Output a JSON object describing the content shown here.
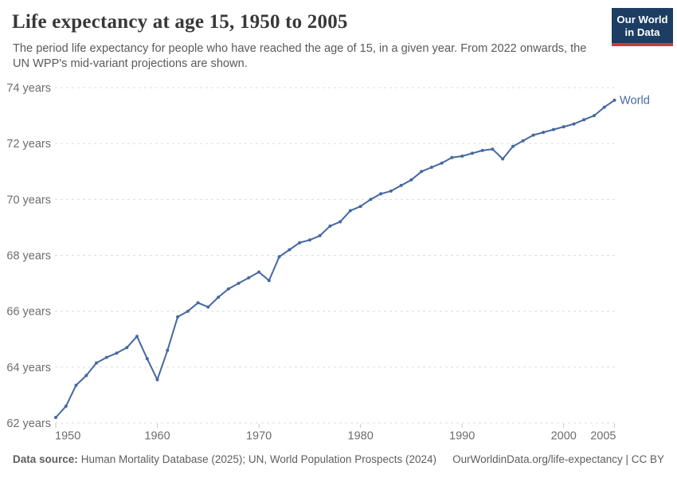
{
  "header": {
    "title": "Life expectancy at age 15, 1950 to 2005",
    "subtitle_lines": [
      "The period life expectancy for people who have reached the age of 15, in a given year. From 2022 onwards, the",
      "UN WPP's mid-variant projections are shown."
    ]
  },
  "logo": {
    "line1": "Our World",
    "line2": "in Data",
    "bg_color": "#1d3d63",
    "accent_color": "#cc3c33"
  },
  "chart_data": {
    "type": "line",
    "title": "Life expectancy at age 15, 1950 to 2005",
    "xlim": [
      1950,
      2005
    ],
    "ylim": [
      62,
      74
    ],
    "yticks": [
      62,
      64,
      66,
      68,
      70,
      72,
      74
    ],
    "ytick_suffix": " years",
    "xticks": [
      1950,
      1960,
      1970,
      1980,
      1990,
      2000,
      2005
    ],
    "grid": "horizontal-dashed",
    "legend_position": "end-of-line",
    "x": [
      1950,
      1951,
      1952,
      1953,
      1954,
      1955,
      1956,
      1957,
      1958,
      1959,
      1960,
      1961,
      1962,
      1963,
      1964,
      1965,
      1966,
      1967,
      1968,
      1969,
      1970,
      1971,
      1972,
      1973,
      1974,
      1975,
      1976,
      1977,
      1978,
      1979,
      1980,
      1981,
      1982,
      1983,
      1984,
      1985,
      1986,
      1987,
      1988,
      1989,
      1990,
      1991,
      1992,
      1993,
      1994,
      1995,
      1996,
      1997,
      1998,
      1999,
      2000,
      2001,
      2002,
      2003,
      2004,
      2005
    ],
    "series": [
      {
        "name": "World",
        "color": "#4568a2",
        "values": [
          62.2,
          62.6,
          63.35,
          63.7,
          64.15,
          64.35,
          64.5,
          64.7,
          65.1,
          64.3,
          63.55,
          64.6,
          65.8,
          66.0,
          66.3,
          66.15,
          66.5,
          66.8,
          67.0,
          67.2,
          67.4,
          67.1,
          67.95,
          68.2,
          68.45,
          68.55,
          68.7,
          69.05,
          69.2,
          69.6,
          69.75,
          70.0,
          70.2,
          70.3,
          70.5,
          70.7,
          71.0,
          71.15,
          71.3,
          71.5,
          71.55,
          71.65,
          71.75,
          71.8,
          71.45,
          71.9,
          72.1,
          72.3,
          72.4,
          72.5,
          72.6,
          72.7,
          72.85,
          73.0,
          73.3,
          73.55
        ]
      }
    ]
  },
  "footer": {
    "datasource_label": "Data source:",
    "datasource_text": "Human Mortality Database (2025); UN, World Population Prospects (2024)",
    "link_text": "OurWorldinData.org/life-expectancy | CC BY"
  }
}
